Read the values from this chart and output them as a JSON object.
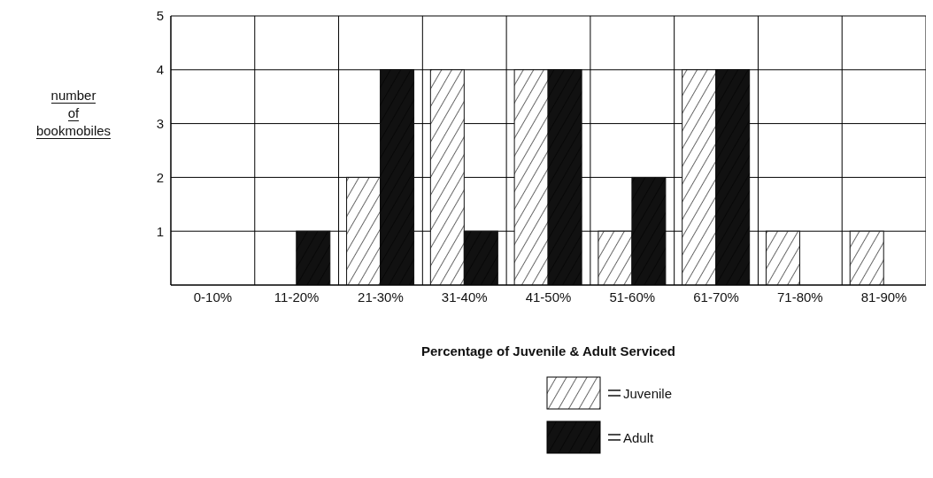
{
  "chart_data": {
    "type": "bar",
    "xlabel": "Percentage of Juvenile & Adult Serviced",
    "ylabel": "number of bookmobiles",
    "categories": [
      "0-10%",
      "11-20%",
      "21-30%",
      "31-40%",
      "41-50%",
      "51-60%",
      "61-70%",
      "71-80%",
      "81-90%"
    ],
    "series": [
      {
        "name": "Juvenile",
        "color": "#ffffff",
        "values": [
          0,
          0,
          2,
          4,
          4,
          1,
          4,
          1,
          1
        ]
      },
      {
        "name": "Adult",
        "color": "#111111",
        "values": [
          0,
          1,
          4,
          1,
          4,
          2,
          4,
          0,
          0
        ]
      }
    ],
    "ylim": [
      0,
      5
    ],
    "yticks": [
      1,
      2,
      3,
      4,
      5
    ],
    "grid": true,
    "legend": "bottom"
  }
}
